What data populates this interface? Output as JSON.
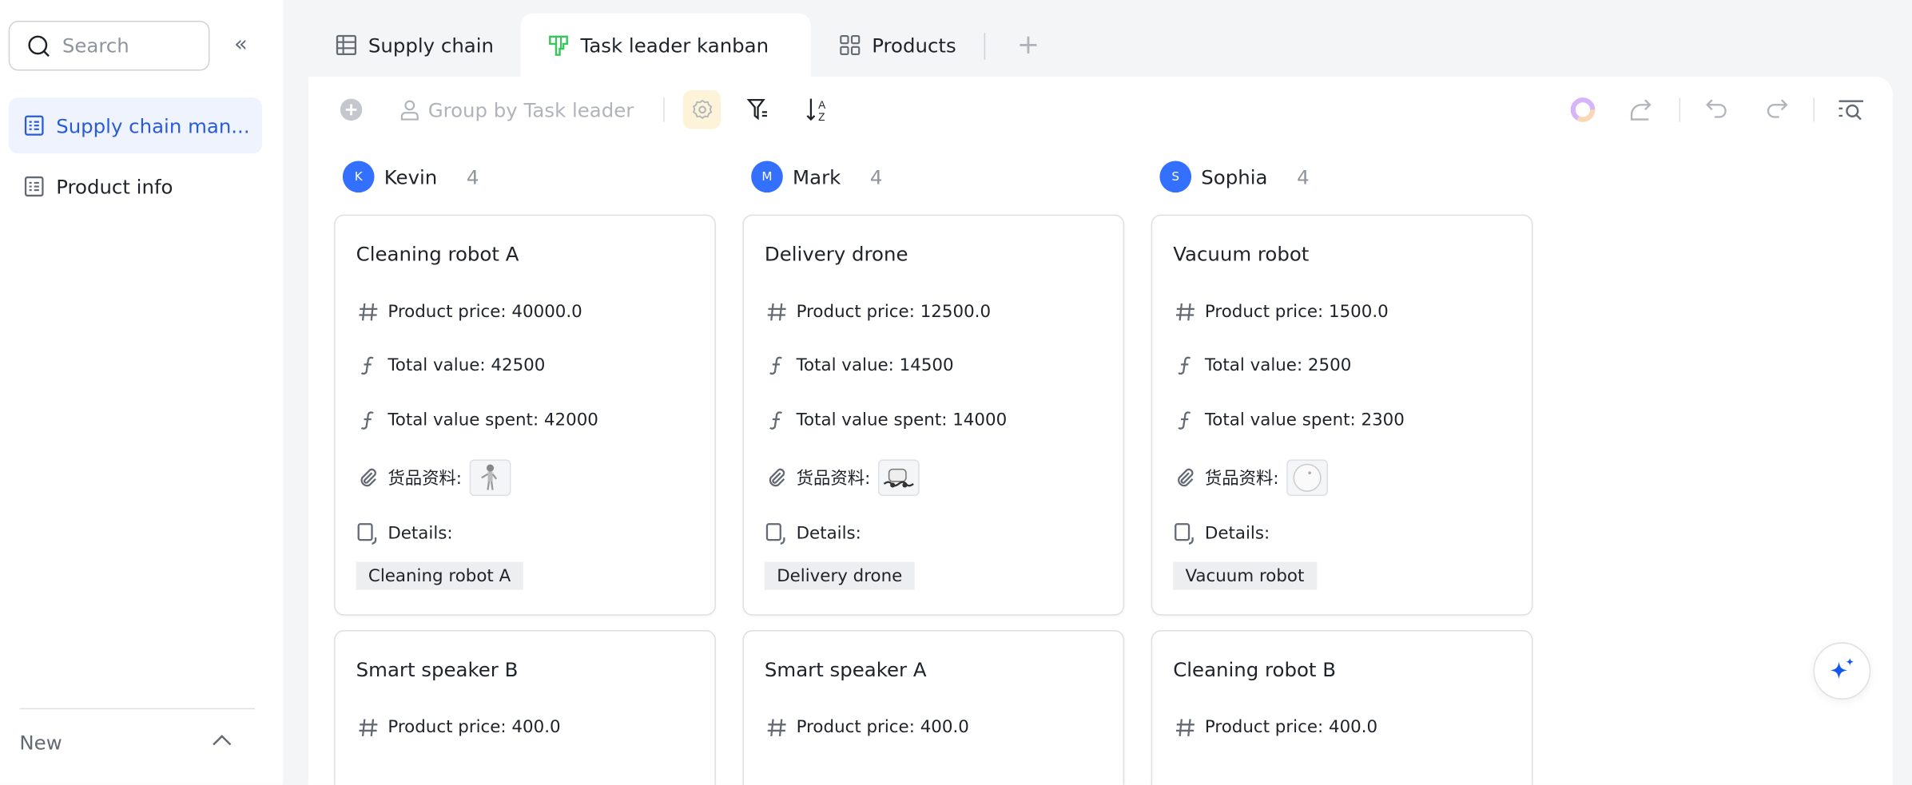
{
  "sidebar": {
    "search_placeholder": "Search",
    "items": [
      {
        "label": "Supply chain man...",
        "active": true
      },
      {
        "label": "Product info"
      }
    ],
    "new_label": "New"
  },
  "tabs": [
    {
      "label": "Supply chain",
      "icon": "grid-table-icon"
    },
    {
      "label": "Task leader kanban",
      "icon": "kanban-icon",
      "active": true
    },
    {
      "label": "Products",
      "icon": "gallery-icon"
    }
  ],
  "toolbar": {
    "group_by": "Group by Task leader"
  },
  "colors": {
    "accent": "#3370ff",
    "active_nav_bg": "#eef3fe",
    "kanban_green": "#34c759",
    "gear_bg": "#fdf3d8"
  },
  "columns": [
    {
      "avatar": "K",
      "name": "Kevin",
      "count": "4",
      "cards": [
        {
          "title": "Cleaning robot A",
          "price": "Product price: 40000.0",
          "total": "Total value: 42500",
          "spent": "Total value spent: 42000",
          "attach": "货品资料:",
          "details": "Details:",
          "tag": "Cleaning robot A",
          "thumb": "robot"
        },
        {
          "title": "Smart speaker B",
          "price": "Product price: 400.0"
        }
      ]
    },
    {
      "avatar": "M",
      "name": "Mark",
      "count": "4",
      "cards": [
        {
          "title": "Delivery drone",
          "price": "Product price: 12500.0",
          "total": "Total value: 14500",
          "spent": "Total value spent: 14000",
          "attach": "货品资料:",
          "details": "Details:",
          "tag": "Delivery drone",
          "thumb": "vehicle"
        },
        {
          "title": "Smart speaker A",
          "price": "Product price: 400.0"
        }
      ]
    },
    {
      "avatar": "S",
      "name": "Sophia",
      "count": "4",
      "cards": [
        {
          "title": "Vacuum robot",
          "price": "Product price: 1500.0",
          "total": "Total value: 2500",
          "spent": "Total value spent: 2300",
          "attach": "货品资料:",
          "details": "Details:",
          "tag": "Vacuum robot",
          "thumb": "disc"
        },
        {
          "title": "Cleaning robot B",
          "price": "Product price: 400.0"
        }
      ]
    }
  ]
}
